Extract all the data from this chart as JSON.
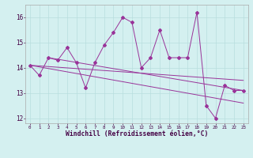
{
  "x": [
    0,
    1,
    2,
    3,
    4,
    5,
    6,
    7,
    8,
    9,
    10,
    11,
    12,
    13,
    14,
    15,
    16,
    17,
    18,
    19,
    20,
    21,
    22,
    23
  ],
  "y": [
    14.1,
    13.7,
    14.4,
    14.3,
    14.8,
    14.2,
    13.2,
    14.2,
    14.9,
    15.4,
    16.0,
    15.8,
    14.0,
    14.4,
    15.5,
    14.4,
    14.4,
    14.4,
    16.2,
    12.5,
    12.0,
    13.3,
    13.1,
    13.1
  ],
  "trend1_x": [
    0,
    23
  ],
  "trend1_y": [
    14.1,
    13.5
  ],
  "trend2_x": [
    0,
    23
  ],
  "trend2_y": [
    14.1,
    12.6
  ],
  "trend3_x": [
    2,
    23
  ],
  "trend3_y": [
    14.4,
    13.1
  ],
  "line_color": "#993399",
  "bg_color": "#d4f0f0",
  "grid_color": "#b8dede",
  "xlabel": "Windchill (Refroidissement éolien,°C)",
  "ylim": [
    11.8,
    16.5
  ],
  "xlim": [
    -0.5,
    23.5
  ],
  "yticks": [
    12,
    13,
    14,
    15,
    16
  ],
  "xticks": [
    0,
    1,
    2,
    3,
    4,
    5,
    6,
    7,
    8,
    9,
    10,
    11,
    12,
    13,
    14,
    15,
    16,
    17,
    18,
    19,
    20,
    21,
    22,
    23
  ]
}
